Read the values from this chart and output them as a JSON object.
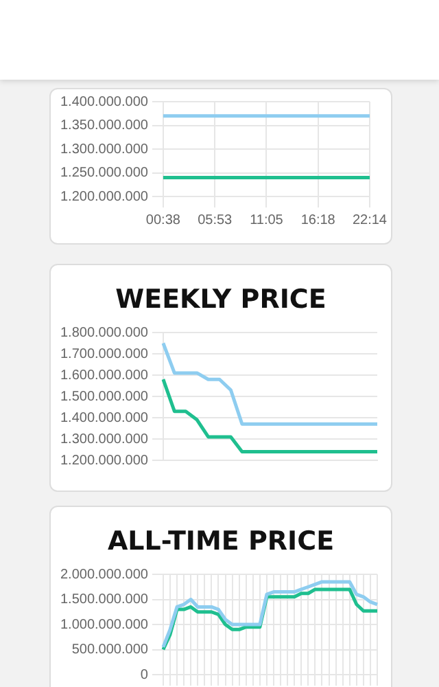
{
  "chart_data": [
    {
      "type": "line",
      "categories": [
        "00:38",
        "05:53",
        "11:05",
        "16:18",
        "22:14"
      ],
      "series": [
        {
          "color": "#8ecdf0",
          "values": [
            1370000000,
            1370000000,
            1370000000,
            1370000000,
            1370000000
          ]
        },
        {
          "color": "#1fbf8f",
          "values": [
            1240000000,
            1240000000,
            1240000000,
            1240000000,
            1240000000
          ]
        }
      ],
      "ylim": [
        1200000000,
        1400000000
      ],
      "yticks": [
        {
          "value": 1200000000,
          "label": "1.200.000.000"
        },
        {
          "value": 1250000000,
          "label": "1.250.000.000"
        },
        {
          "value": 1300000000,
          "label": "1.300.000.000"
        },
        {
          "value": 1350000000,
          "label": "1.350.000.000"
        },
        {
          "value": 1400000000,
          "label": "1.400.000.000"
        }
      ],
      "grid": true,
      "marker": "none"
    },
    {
      "type": "line",
      "title": "WEEKLY PRICE",
      "categories": [
        null,
        null,
        null,
        null,
        null,
        null,
        null,
        null,
        null,
        null,
        null,
        null,
        null,
        null,
        null,
        null,
        null,
        null,
        null,
        null
      ],
      "series": [
        {
          "color": "#8ecdf0",
          "values": [
            1750000000,
            1610000000,
            1610000000,
            1610000000,
            1580000000,
            1580000000,
            1530000000,
            1370000000,
            1370000000,
            1370000000,
            1370000000,
            1370000000,
            1370000000,
            1370000000,
            1370000000,
            1370000000,
            1370000000,
            1370000000,
            1370000000,
            1370000000
          ]
        },
        {
          "color": "#1fbf8f",
          "values": [
            1580000000,
            1430000000,
            1430000000,
            1390000000,
            1310000000,
            1310000000,
            1310000000,
            1240000000,
            1240000000,
            1240000000,
            1240000000,
            1240000000,
            1240000000,
            1240000000,
            1240000000,
            1240000000,
            1240000000,
            1240000000,
            1240000000,
            1240000000
          ]
        }
      ],
      "ylim": [
        1200000000,
        1800000000
      ],
      "yticks": [
        {
          "value": 1200000000,
          "label": "1.200.000.000"
        },
        {
          "value": 1300000000,
          "label": "1.300.000.000"
        },
        {
          "value": 1400000000,
          "label": "1.400.000.000"
        },
        {
          "value": 1500000000,
          "label": "1.500.000.000"
        },
        {
          "value": 1600000000,
          "label": "1.600.000.000"
        },
        {
          "value": 1700000000,
          "label": "1.700.000.000"
        },
        {
          "value": 1800000000,
          "label": "1.800.000.000"
        }
      ],
      "grid": "y",
      "marker": "none",
      "tick_labels": "y"
    },
    {
      "type": "line",
      "title": "ALL-TIME PRICE",
      "categories": [
        null,
        null,
        null,
        null,
        null,
        null,
        null,
        null,
        null,
        null,
        null,
        null,
        null,
        null,
        null,
        null,
        null,
        null,
        null,
        null,
        null,
        null,
        null,
        null,
        null,
        null,
        null,
        null,
        null,
        null,
        null,
        null
      ],
      "series": [
        {
          "color": "#8ecdf0",
          "values": [
            550000000,
            900000000,
            1350000000,
            1400000000,
            1500000000,
            1350000000,
            1350000000,
            1350000000,
            1300000000,
            1100000000,
            1000000000,
            1000000000,
            1000000000,
            1000000000,
            1000000000,
            1600000000,
            1650000000,
            1650000000,
            1650000000,
            1650000000,
            1700000000,
            1750000000,
            1800000000,
            1850000000,
            1850000000,
            1850000000,
            1850000000,
            1850000000,
            1600000000,
            1550000000,
            1450000000,
            1400000000
          ]
        },
        {
          "color": "#1fbf8f",
          "values": [
            500000000,
            800000000,
            1300000000,
            1300000000,
            1350000000,
            1250000000,
            1250000000,
            1250000000,
            1200000000,
            1000000000,
            900000000,
            900000000,
            950000000,
            950000000,
            950000000,
            1550000000,
            1550000000,
            1550000000,
            1550000000,
            1550000000,
            1620000000,
            1620000000,
            1700000000,
            1700000000,
            1700000000,
            1700000000,
            1700000000,
            1700000000,
            1400000000,
            1270000000,
            1270000000,
            1270000000
          ]
        }
      ],
      "ylim": [
        0,
        2000000000
      ],
      "yticks": [
        {
          "value": 0,
          "label": "0"
        },
        {
          "value": 500000000,
          "label": "500.000.000"
        },
        {
          "value": 1000000000,
          "label": "1.000.000.000"
        },
        {
          "value": 1500000000,
          "label": "1.500.000.000"
        },
        {
          "value": 2000000000,
          "label": "2.000.000.000"
        }
      ],
      "grid": true,
      "marker": "none",
      "tick_labels": "y"
    }
  ]
}
